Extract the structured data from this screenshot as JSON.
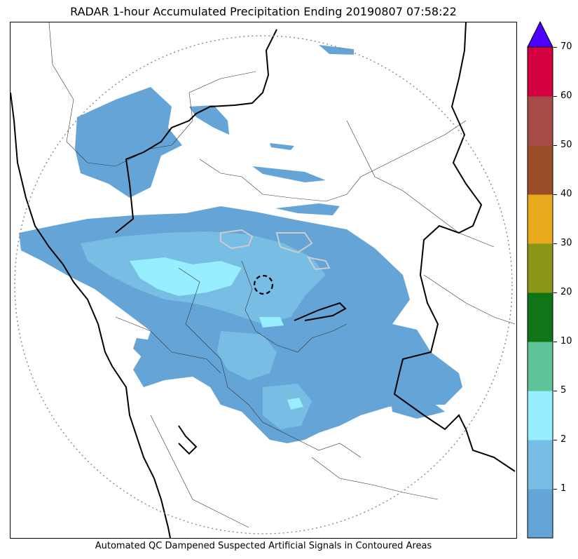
{
  "title": "RADAR 1-hour Accumulated Precipitation Ending 20190807 07:58:22",
  "caption": "Automated QC Dampened Suspected Artificial Signals in Contoured Areas",
  "colorbar": {
    "ticks": [
      "1",
      "2",
      "5",
      "10",
      "20",
      "30",
      "40",
      "50",
      "60",
      "70"
    ],
    "colors": [
      "#65a4d6",
      "#78bde3",
      "#96eefe",
      "#5dc49a",
      "#0f7517",
      "#8a9618",
      "#e9a91c",
      "#9a4e2a",
      "#a64b47",
      "#d2003f"
    ],
    "extend_color": "#4c00ff"
  },
  "colors": {
    "rain_light": "#65a4d6",
    "rain_medium": "#78bde3",
    "rain_heavy": "#96eefe",
    "coast_border": "#000000",
    "range_ring": "#888888"
  }
}
